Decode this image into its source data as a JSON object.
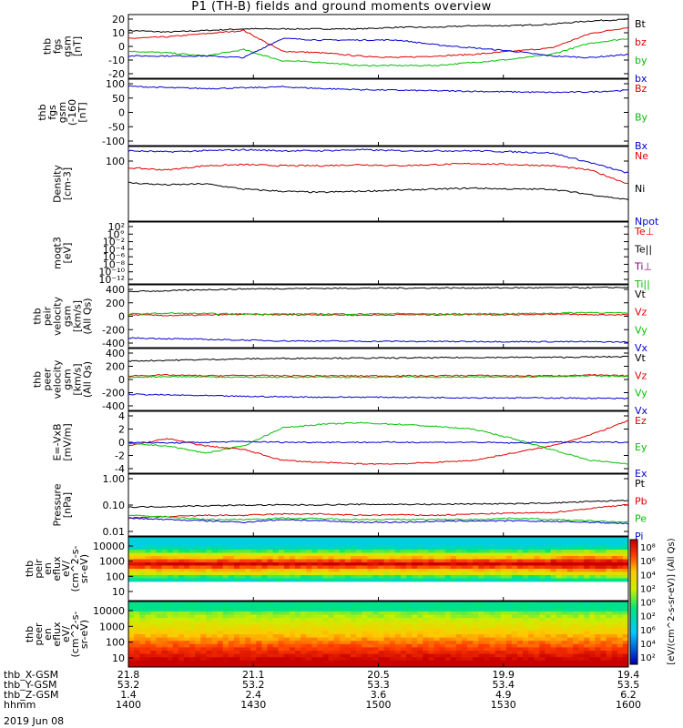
{
  "title": "P1 (TH-B) fields and ground moments overview",
  "date_label": "2019 Jun 08",
  "colors": {
    "black": "#000000",
    "red": "#e00000",
    "green": "#00c000",
    "blue": "#0000d0",
    "purple": "#800080"
  },
  "chart_data": [
    {
      "id": "fgs",
      "type": "line",
      "ylabel": [
        "thb",
        "fgs",
        "gsm",
        "[nT]"
      ],
      "yticks": [
        "20",
        "10",
        "0",
        "-10",
        "-20"
      ],
      "ylim": [
        -20,
        20
      ],
      "series": [
        {
          "name": "Bt",
          "color": "black",
          "values": [
            10,
            9,
            10,
            11,
            11,
            11,
            11,
            12,
            12,
            13,
            13,
            14,
            16,
            17
          ]
        },
        {
          "name": "bz",
          "color": "red",
          "values": [
            5,
            6,
            8,
            10,
            -3,
            -4,
            -6,
            -7,
            -6,
            -5,
            -3,
            -1,
            8,
            12
          ]
        },
        {
          "name": "by",
          "color": "green",
          "values": [
            -3,
            -4,
            -6,
            -2,
            -9,
            -10,
            -12,
            -12,
            -12,
            -10,
            -8,
            -5,
            2,
            5
          ]
        },
        {
          "name": "bx",
          "color": "blue",
          "values": [
            -6,
            -6,
            -6,
            -7,
            5,
            4,
            4,
            4,
            1,
            -1,
            -3,
            -6,
            -7,
            -5
          ]
        }
      ]
    },
    {
      "id": "fgs_hires",
      "type": "line",
      "ylabel": [
        "thb",
        "fgs",
        "gsm",
        "(-160",
        "[nT]"
      ],
      "yticks": [
        "100",
        "50",
        "0",
        "-50",
        "-100"
      ],
      "ylim": [
        -130,
        105
      ],
      "series": [
        {
          "name": "Bz",
          "color": "red",
          "values": []
        },
        {
          "name": "By",
          "color": "green",
          "values": []
        },
        {
          "name": "Bx",
          "color": "blue",
          "values": [
            80,
            75,
            72,
            74,
            78,
            72,
            68,
            66,
            64,
            62,
            60,
            58,
            60,
            66
          ]
        }
      ]
    },
    {
      "id": "density",
      "type": "line",
      "ylabel": [
        "Density",
        "[cm-3]"
      ],
      "yticks": [
        "100"
      ],
      "ylim": [
        -4,
        3
      ],
      "series": [
        {
          "name": "Ne",
          "color": "red",
          "values": [
            1,
            0.8,
            1.2,
            1.3,
            1.2,
            1.2,
            1.3,
            1.2,
            1.3,
            1.4,
            1.3,
            1.2,
            0.8,
            -0.5
          ]
        },
        {
          "name": "Ni",
          "color": "black",
          "values": [
            -0.4,
            -0.6,
            -0.5,
            -1,
            -1.2,
            -1.3,
            -1.2,
            -1.1,
            -1,
            -0.9,
            -1,
            -1,
            -1.5,
            -2
          ]
        },
        {
          "name": "Npot",
          "color": "blue",
          "values": [
            2.6,
            2.5,
            2.6,
            2.7,
            2.6,
            2.6,
            2.7,
            2.6,
            2.6,
            2.6,
            2.5,
            2.4,
            1.5,
            0.5
          ]
        }
      ]
    },
    {
      "id": "temps",
      "type": "line",
      "ylabel": [
        "moqt3",
        "[eV]"
      ],
      "yticks": [
        "10²",
        "10°",
        "10⁻²",
        "10⁻⁴",
        "10⁻⁶",
        "10⁻⁸",
        "10⁻¹⁰",
        "10⁻¹²"
      ],
      "ylim": [
        -13,
        2.5
      ],
      "series": [
        {
          "name": "Te⊥",
          "color": "red",
          "values": []
        },
        {
          "name": "Te||",
          "color": "black",
          "values": []
        },
        {
          "name": "Ti⊥",
          "color": "purple",
          "values": []
        },
        {
          "name": "Ti||",
          "color": "green",
          "values": []
        }
      ]
    },
    {
      "id": "peir_vel",
      "type": "line",
      "ylabel": [
        "thb",
        "peir",
        "velocity",
        "gsm",
        "[km/s]",
        "(All Qs)"
      ],
      "yticks": [
        "400",
        "200",
        "0",
        "-200",
        "-400"
      ],
      "ylim": [
        -440,
        400
      ],
      "series": [
        {
          "name": "Vt",
          "color": "black",
          "values": [
            310,
            320,
            335,
            345,
            350,
            352,
            355,
            356,
            358,
            358,
            360,
            360,
            362,
            365
          ]
        },
        {
          "name": "Vz",
          "color": "red",
          "values": [
            0,
            -10,
            -5,
            5,
            0,
            0,
            -5,
            0,
            0,
            5,
            0,
            10,
            0,
            0
          ]
        },
        {
          "name": "Vy",
          "color": "green",
          "values": [
            10,
            20,
            15,
            10,
            10,
            12,
            10,
            15,
            10,
            12,
            15,
            20,
            30,
            20
          ]
        },
        {
          "name": "Vx",
          "color": "blue",
          "values": [
            -310,
            -320,
            -330,
            -340,
            -350,
            -352,
            -355,
            -356,
            -358,
            -358,
            -360,
            -360,
            -362,
            -365
          ]
        }
      ]
    },
    {
      "id": "peer_vel",
      "type": "line",
      "ylabel": [
        "thb",
        "peer",
        "velocity",
        "gsm",
        "[km/s]",
        "(All Qs)"
      ],
      "yticks": [
        "400",
        "200",
        "0",
        "-200",
        "-400"
      ],
      "ylim": [
        -440,
        400
      ],
      "series": [
        {
          "name": "Vt",
          "color": "black",
          "values": [
            230,
            240,
            250,
            260,
            265,
            270,
            270,
            272,
            275,
            278,
            280,
            280,
            285,
            290
          ]
        },
        {
          "name": "Vz",
          "color": "red",
          "values": [
            30,
            40,
            30,
            35,
            30,
            30,
            28,
            30,
            30,
            35,
            30,
            30,
            40,
            30
          ]
        },
        {
          "name": "Vy",
          "color": "green",
          "values": [
            10,
            20,
            15,
            10,
            10,
            12,
            10,
            15,
            10,
            12,
            15,
            20,
            30,
            20
          ]
        },
        {
          "name": "Vx",
          "color": "blue",
          "values": [
            -220,
            -230,
            -240,
            -250,
            -255,
            -260,
            -260,
            -262,
            -265,
            -268,
            -270,
            -270,
            -275,
            -280
          ]
        }
      ]
    },
    {
      "id": "efield",
      "type": "line",
      "ylabel": [
        "E=-VxB",
        "[mV/m]"
      ],
      "yticks": [
        "4",
        "2",
        "0",
        "-2",
        "-4"
      ],
      "ylim": [
        -4.3,
        4.3
      ],
      "series": [
        {
          "name": "Ez",
          "color": "red",
          "values": [
            -0.5,
            0.5,
            -0.5,
            -1,
            -2.5,
            -2.8,
            -3,
            -3,
            -2.8,
            -2.5,
            -1.5,
            -0.5,
            1,
            3
          ]
        },
        {
          "name": "Ey",
          "color": "green",
          "values": [
            -0.2,
            -0.5,
            -1.5,
            -0.5,
            2,
            2.5,
            2.7,
            2.5,
            2.2,
            1.8,
            0.5,
            -1,
            -2.5,
            -3
          ]
        },
        {
          "name": "Ex",
          "color": "blue",
          "values": [
            0,
            -0.1,
            0,
            0.1,
            0,
            0,
            0,
            0,
            0,
            0,
            -0.1,
            0,
            0,
            0
          ]
        }
      ]
    },
    {
      "id": "pressure",
      "type": "line",
      "ylabel": [
        "Pressure",
        "[nPa]"
      ],
      "yticks": [
        "1.00",
        "0.10",
        "0.01"
      ],
      "ylim": [
        -2.05,
        0.2
      ],
      "series": [
        {
          "name": "Pt",
          "color": "black",
          "values": [
            -1.0,
            -0.98,
            -0.95,
            -0.93,
            -0.92,
            -0.92,
            -0.9,
            -0.9,
            -0.9,
            -0.88,
            -0.88,
            -0.85,
            -0.8,
            -0.75
          ]
        },
        {
          "name": "Pb",
          "color": "red",
          "values": [
            -1.4,
            -1.35,
            -1.3,
            -1.3,
            -1.25,
            -1.25,
            -1.3,
            -1.28,
            -1.3,
            -1.25,
            -1.22,
            -1.2,
            -1.05,
            -0.9
          ]
        },
        {
          "name": "Pe",
          "color": "green",
          "values": [
            -1.3,
            -1.35,
            -1.45,
            -1.45,
            -1.4,
            -1.42,
            -1.45,
            -1.45,
            -1.45,
            -1.45,
            -1.4,
            -1.45,
            -1.5,
            -1.55
          ]
        },
        {
          "name": "Pi",
          "color": "blue",
          "values": [
            -1.4,
            -1.45,
            -1.5,
            -1.55,
            -1.45,
            -1.5,
            -1.55,
            -1.55,
            -1.52,
            -1.5,
            -1.5,
            -1.52,
            -1.55,
            -1.6
          ]
        }
      ]
    },
    {
      "id": "peir_spec",
      "type": "heatmap",
      "ylabel": [
        "thb",
        "peir",
        "en",
        "eflux",
        "eV/",
        "(cm^2-s-",
        "sr-eV)"
      ],
      "yticks": [
        "10000",
        "1000",
        "100",
        "10"
      ]
    },
    {
      "id": "peer_spec",
      "type": "heatmap",
      "ylabel": [
        "thb",
        "peer",
        "en",
        "eflux",
        "eV/",
        "(cm^2-s-",
        "sr-eV)"
      ],
      "yticks": [
        "10000",
        "1000",
        "100",
        "10"
      ]
    }
  ],
  "legend_panel_labels": [
    "(All Qs)"
  ],
  "colorbar": {
    "ticks": [
      "10⁸",
      "10⁶",
      "10⁴",
      "10²",
      "10⁰",
      "10²",
      "10⁶",
      "10⁴",
      "10²"
    ],
    "label": "[eV/(cm^2-s-sr-eV)] (All Qs)"
  },
  "xaxis": {
    "row_labels": [
      "thb_X-GSM",
      "thb_Y-GSM",
      "thb_Z-GSM",
      "hhmm"
    ],
    "columns": [
      [
        "21.8",
        "53.2",
        "1.4",
        "1400"
      ],
      [
        "21.1",
        "53.2",
        "2.4",
        "1430"
      ],
      [
        "20.5",
        "53.3",
        "3.6",
        "1500"
      ],
      [
        "19.9",
        "53.4",
        "4.9",
        "1530"
      ],
      [
        "19.4",
        "53.5",
        "6.2",
        "1600"
      ]
    ]
  }
}
